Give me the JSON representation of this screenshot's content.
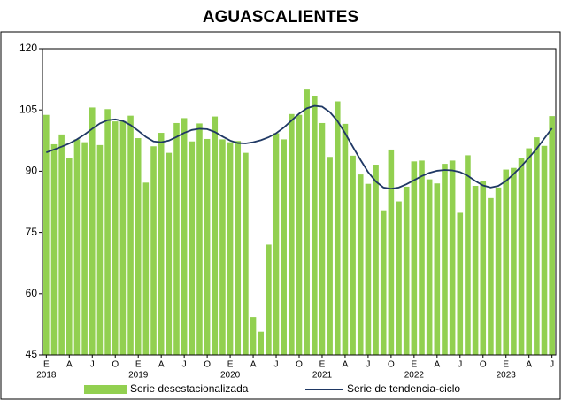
{
  "chart_data": {
    "type": "bar_line",
    "title": "AGUASCALIENTES",
    "categories": [
      "E",
      null,
      null,
      "A",
      null,
      null,
      "J",
      null,
      null,
      "O",
      null,
      null,
      "E",
      null,
      null,
      "A",
      null,
      null,
      "J",
      null,
      null,
      "O",
      null,
      null,
      "E",
      null,
      null,
      "A",
      null,
      null,
      "J",
      null,
      null,
      "O",
      null,
      null,
      "E",
      null,
      null,
      "A",
      null,
      null,
      "J",
      null,
      null,
      "O",
      null,
      null,
      "E",
      null,
      null,
      "A",
      null,
      null,
      "J",
      null,
      null,
      "O",
      null,
      null,
      "E",
      null,
      null,
      "A",
      null,
      null,
      "J"
    ],
    "years": [
      "2018",
      null,
      null,
      null,
      null,
      null,
      null,
      null,
      null,
      null,
      null,
      null,
      "2019",
      null,
      null,
      null,
      null,
      null,
      null,
      null,
      null,
      null,
      null,
      null,
      "2020",
      null,
      null,
      null,
      null,
      null,
      null,
      null,
      null,
      null,
      null,
      null,
      "2021",
      null,
      null,
      null,
      null,
      null,
      null,
      null,
      null,
      null,
      null,
      null,
      "2022",
      null,
      null,
      null,
      null,
      null,
      null,
      null,
      null,
      null,
      null,
      null,
      "2023",
      null,
      null,
      null,
      null,
      null,
      null
    ],
    "series": [
      {
        "name": "Serie desestacionalizada",
        "type": "bar",
        "color": "#92d050",
        "values": [
          103.8,
          96.6,
          99.0,
          93.2,
          97.8,
          97.1,
          105.6,
          96.4,
          105.2,
          102.2,
          102.3,
          103.6,
          98.1,
          87.2,
          96.1,
          99.4,
          94.5,
          101.8,
          103.0,
          97.3,
          101.7,
          97.9,
          103.4,
          97.8,
          97.1,
          97.4,
          94.5,
          54.3,
          50.7,
          72.0,
          99.3,
          97.8,
          104.0,
          103.8,
          110.0,
          108.3,
          101.8,
          93.5,
          107.1,
          101.6,
          93.8,
          89.2,
          86.9,
          91.6,
          80.4,
          95.3,
          82.6,
          86.2,
          92.4,
          92.6,
          88.0,
          87.0,
          91.8,
          92.6,
          79.8,
          93.9,
          86.4,
          87.5,
          83.4,
          86.0,
          90.4,
          90.8,
          93.3,
          95.6,
          98.3,
          96.2,
          103.5
        ]
      },
      {
        "name": "Serie de tendencia-ciclo",
        "type": "line",
        "color": "#1f3864",
        "values": [
          94.6,
          95.3,
          96.0,
          96.8,
          97.8,
          99.0,
          100.4,
          101.7,
          102.5,
          102.7,
          102.3,
          101.3,
          99.9,
          98.4,
          97.3,
          97.1,
          97.5,
          98.4,
          99.4,
          100.1,
          100.4,
          100.3,
          99.6,
          98.5,
          97.5,
          96.9,
          96.8,
          97.1,
          97.6,
          98.3,
          99.3,
          100.7,
          102.4,
          104.1,
          105.4,
          106.0,
          105.8,
          104.5,
          102.3,
          99.3,
          96.0,
          92.8,
          89.8,
          87.5,
          86.0,
          85.7,
          86.0,
          86.8,
          87.8,
          88.8,
          89.6,
          90.1,
          90.3,
          90.2,
          89.8,
          88.9,
          87.6,
          86.5,
          86.0,
          86.4,
          87.6,
          89.3,
          91.2,
          93.3,
          95.5,
          98.0,
          100.5
        ]
      }
    ],
    "ylim": [
      45,
      120
    ],
    "yticks": [
      45,
      60,
      75,
      90,
      105,
      120
    ],
    "grid": false
  }
}
